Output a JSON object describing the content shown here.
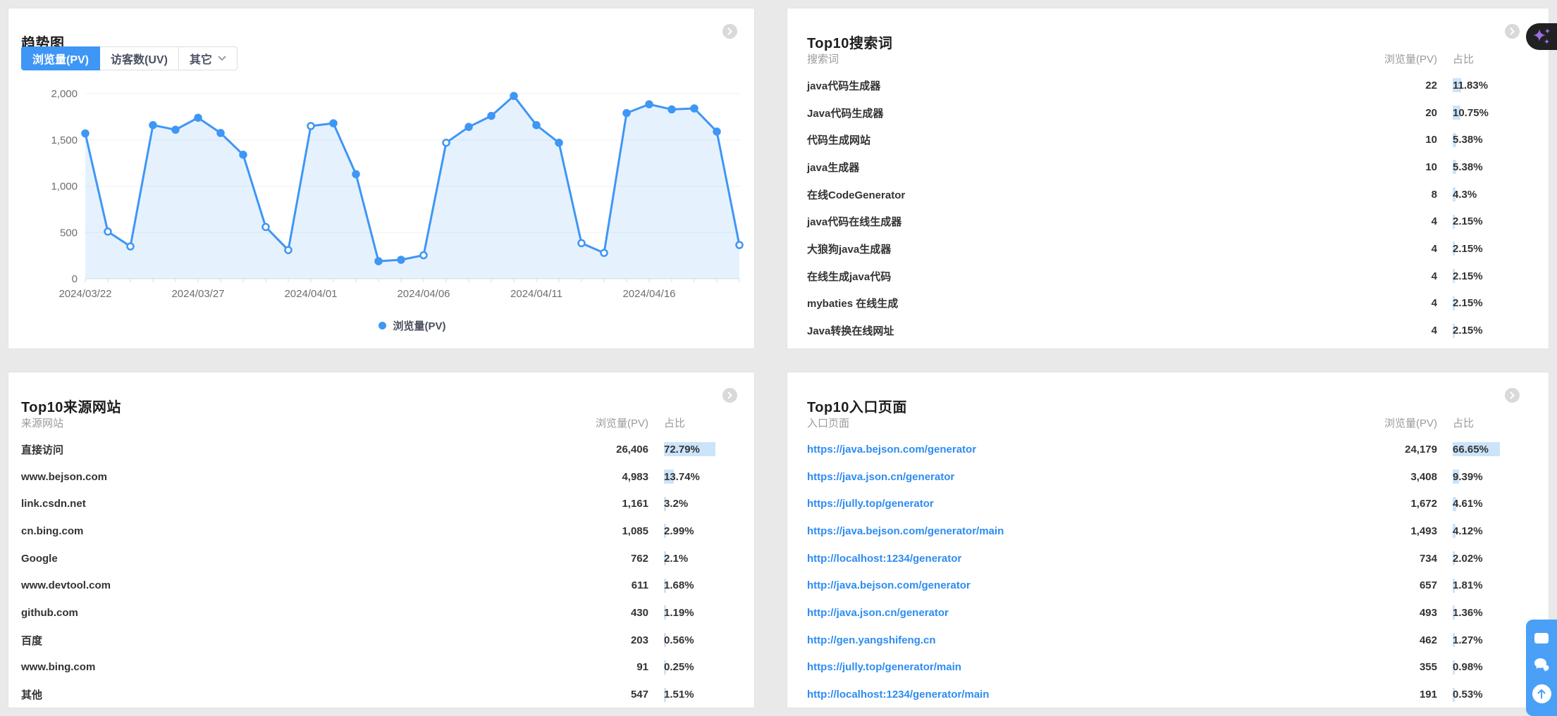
{
  "colors": {
    "page_bg": "#e9e9e9",
    "panel_bg": "#ffffff",
    "accent_blue": "#3e96f5",
    "link_blue": "#2d8cf0",
    "pct_bar_bg": "#cbe4fa",
    "dark_button_bg": "#212121",
    "sparkle_purple": "#9d6ce2",
    "widget_blue": "#49a0f6"
  },
  "icons": {
    "expand": "chevron-right-icon",
    "more_tab": "chevron-down-icon",
    "ai_button": "sparkles-icon",
    "widget": [
      "window-icon",
      "chat-icon",
      "back-to-top-icon"
    ],
    "legend_marker": "dot-icon"
  },
  "trend_panel": {
    "title": "趋势图",
    "tabs": [
      {
        "label": "浏览量(PV)",
        "active": true
      },
      {
        "label": "访客数(UV)",
        "active": false
      },
      {
        "label": "其它",
        "active": false,
        "has_dropdown": true
      }
    ]
  },
  "chart_data": {
    "type": "area",
    "title": "趋势图 浏览量(PV)",
    "x": [
      "2024/03/22",
      "2024/03/23",
      "2024/03/24",
      "2024/03/25",
      "2024/03/26",
      "2024/03/27",
      "2024/03/28",
      "2024/03/29",
      "2024/03/30",
      "2024/03/31",
      "2024/04/01",
      "2024/04/02",
      "2024/04/03",
      "2024/04/04",
      "2024/04/05",
      "2024/04/06",
      "2024/04/07",
      "2024/04/08",
      "2024/04/09",
      "2024/04/10",
      "2024/04/11",
      "2024/04/12",
      "2024/04/13",
      "2024/04/14",
      "2024/04/15",
      "2024/04/16",
      "2024/04/17",
      "2024/04/18",
      "2024/04/19",
      "2024/04/20"
    ],
    "series": [
      {
        "name": "浏览量(PV)",
        "values": [
          1570,
          510,
          350,
          1660,
          1610,
          1740,
          1575,
          1340,
          560,
          310,
          1650,
          1680,
          1130,
          190,
          205,
          255,
          1470,
          1640,
          1760,
          1975,
          1660,
          1470,
          385,
          280,
          1790,
          1885,
          1830,
          1840,
          1590,
          365
        ],
        "hollow_point_indices": [
          1,
          2,
          8,
          9,
          10,
          15,
          16,
          22,
          23,
          29
        ]
      }
    ],
    "ylim": [
      0,
      2000
    ],
    "yticks": [
      {
        "value": 0,
        "label": "0"
      },
      {
        "value": 500,
        "label": "500"
      },
      {
        "value": 1000,
        "label": "1,000"
      },
      {
        "value": 1500,
        "label": "1,500"
      },
      {
        "value": 2000,
        "label": "2,000"
      }
    ],
    "x_tick_indices": [
      0,
      5,
      10,
      15,
      20,
      25
    ],
    "grid": true,
    "legend_position": "bottom",
    "line_color": "#3e96f5",
    "area_color": "rgba(62,150,245,0.13)"
  },
  "search_panel": {
    "title": "Top10搜索词",
    "columns": {
      "name": "搜索词",
      "pv": "浏览量(PV)",
      "pct": "占比"
    },
    "rows": [
      {
        "name": "java代码生成器",
        "pv": "22",
        "pct": "11.83%",
        "pct_value": 11.83
      },
      {
        "name": "Java代码生成器",
        "pv": "20",
        "pct": "10.75%",
        "pct_value": 10.75
      },
      {
        "name": "代码生成网站",
        "pv": "10",
        "pct": "5.38%",
        "pct_value": 5.38
      },
      {
        "name": "java生成器",
        "pv": "10",
        "pct": "5.38%",
        "pct_value": 5.38
      },
      {
        "name": "在线CodeGenerator",
        "pv": "8",
        "pct": "4.3%",
        "pct_value": 4.3
      },
      {
        "name": "java代码在线生成器",
        "pv": "4",
        "pct": "2.15%",
        "pct_value": 2.15
      },
      {
        "name": "大狼狗java生成器",
        "pv": "4",
        "pct": "2.15%",
        "pct_value": 2.15
      },
      {
        "name": "在线生成java代码",
        "pv": "4",
        "pct": "2.15%",
        "pct_value": 2.15
      },
      {
        "name": "mybaties 在线生成",
        "pv": "4",
        "pct": "2.15%",
        "pct_value": 2.15
      },
      {
        "name": "Java转换在线网址",
        "pv": "4",
        "pct": "2.15%",
        "pct_value": 2.15
      }
    ]
  },
  "referrer_panel": {
    "title": "Top10来源网站",
    "columns": {
      "name": "来源网站",
      "pv": "浏览量(PV)",
      "pct": "占比"
    },
    "rows": [
      {
        "name": "直接访问",
        "pv": "26,406",
        "pct": "72.79%",
        "pct_value": 72.79
      },
      {
        "name": "www.bejson.com",
        "pv": "4,983",
        "pct": "13.74%",
        "pct_value": 13.74
      },
      {
        "name": "link.csdn.net",
        "pv": "1,161",
        "pct": "3.2%",
        "pct_value": 3.2
      },
      {
        "name": "cn.bing.com",
        "pv": "1,085",
        "pct": "2.99%",
        "pct_value": 2.99
      },
      {
        "name": "Google",
        "pv": "762",
        "pct": "2.1%",
        "pct_value": 2.1
      },
      {
        "name": "www.devtool.com",
        "pv": "611",
        "pct": "1.68%",
        "pct_value": 1.68
      },
      {
        "name": "github.com",
        "pv": "430",
        "pct": "1.19%",
        "pct_value": 1.19
      },
      {
        "name": "百度",
        "pv": "203",
        "pct": "0.56%",
        "pct_value": 0.56
      },
      {
        "name": "www.bing.com",
        "pv": "91",
        "pct": "0.25%",
        "pct_value": 0.25
      },
      {
        "name": "其他",
        "pv": "547",
        "pct": "1.51%",
        "pct_value": 1.51
      }
    ]
  },
  "entry_panel": {
    "title": "Top10入口页面",
    "columns": {
      "name": "入口页面",
      "pv": "浏览量(PV)",
      "pct": "占比"
    },
    "rows": [
      {
        "name": "https://java.bejson.com/generator",
        "pv": "24,179",
        "pct": "66.65%",
        "pct_value": 66.65
      },
      {
        "name": "https://java.json.cn/generator",
        "pv": "3,408",
        "pct": "9.39%",
        "pct_value": 9.39
      },
      {
        "name": "https://jully.top/generator",
        "pv": "1,672",
        "pct": "4.61%",
        "pct_value": 4.61
      },
      {
        "name": "https://java.bejson.com/generator/main",
        "pv": "1,493",
        "pct": "4.12%",
        "pct_value": 4.12
      },
      {
        "name": "http://localhost:1234/generator",
        "pv": "734",
        "pct": "2.02%",
        "pct_value": 2.02
      },
      {
        "name": "http://java.bejson.com/generator",
        "pv": "657",
        "pct": "1.81%",
        "pct_value": 1.81
      },
      {
        "name": "http://java.json.cn/generator",
        "pv": "493",
        "pct": "1.36%",
        "pct_value": 1.36
      },
      {
        "name": "http://gen.yangshifeng.cn",
        "pv": "462",
        "pct": "1.27%",
        "pct_value": 1.27
      },
      {
        "name": "https://jully.top/generator/main",
        "pv": "355",
        "pct": "0.98%",
        "pct_value": 0.98
      },
      {
        "name": "http://localhost:1234/generator/main",
        "pv": "191",
        "pct": "0.53%",
        "pct_value": 0.53
      }
    ]
  }
}
